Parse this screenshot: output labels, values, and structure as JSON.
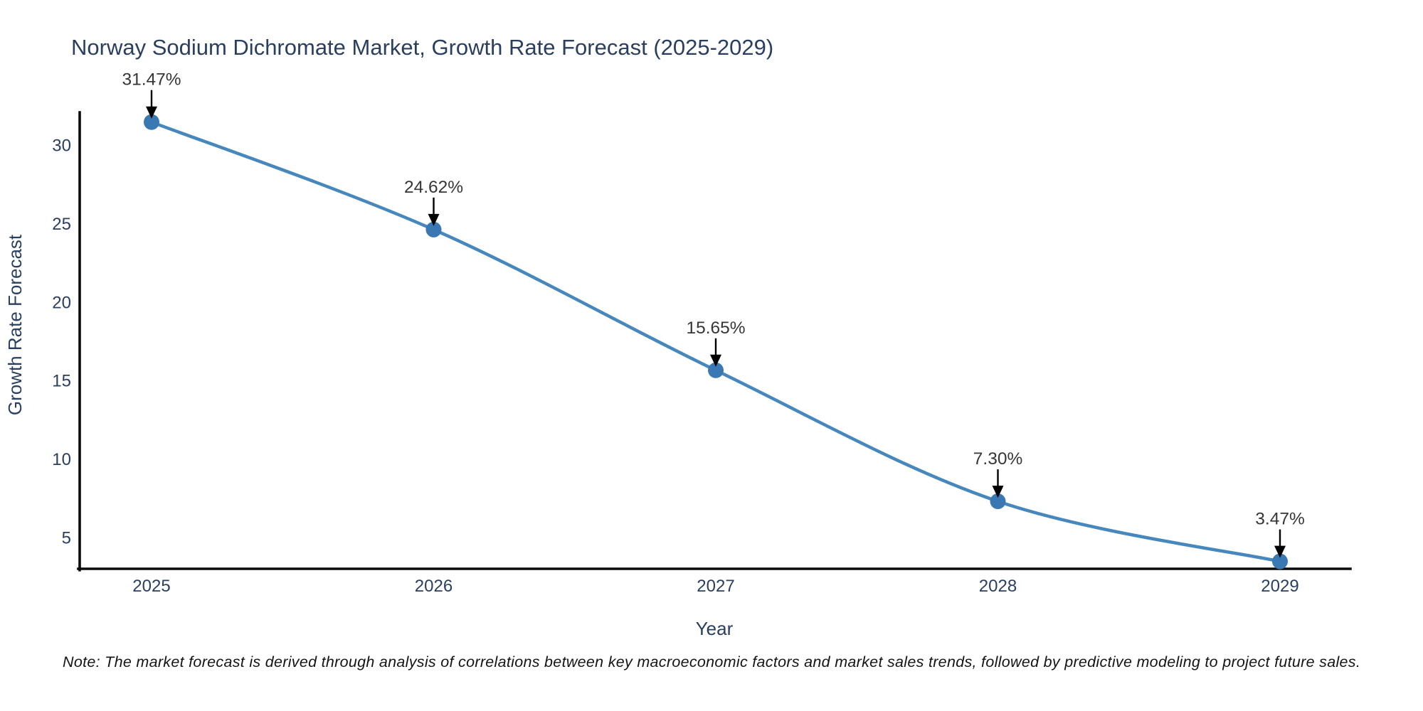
{
  "chart_data": {
    "type": "line",
    "title": "Norway Sodium Dichromate Market, Growth Rate Forecast (2025-2029)",
    "xlabel": "Year",
    "ylabel": "Growth Rate Forecast",
    "x": [
      "2025",
      "2026",
      "2027",
      "2028",
      "2029"
    ],
    "series": [
      {
        "name": "Growth Rate Forecast",
        "values": [
          31.47,
          24.62,
          15.65,
          7.3,
          3.47
        ]
      }
    ],
    "point_labels": [
      "31.47%",
      "24.62%",
      "15.65%",
      "7.30%",
      "3.47%"
    ],
    "yticks": [
      5,
      10,
      15,
      20,
      25,
      30
    ],
    "ylim": [
      3.0,
      32.0
    ],
    "grid": false,
    "legend": "none",
    "line_color": "#4688bd",
    "marker_color": "#3a78b3",
    "arrow_color": "#000000",
    "axis_text_color": "#2a3f5f",
    "annotation_text_color": "#363636",
    "note": "Note: The market forecast is derived through analysis of correlations between key macroeconomic factors and market sales trends, followed by predictive modeling to project future sales."
  }
}
